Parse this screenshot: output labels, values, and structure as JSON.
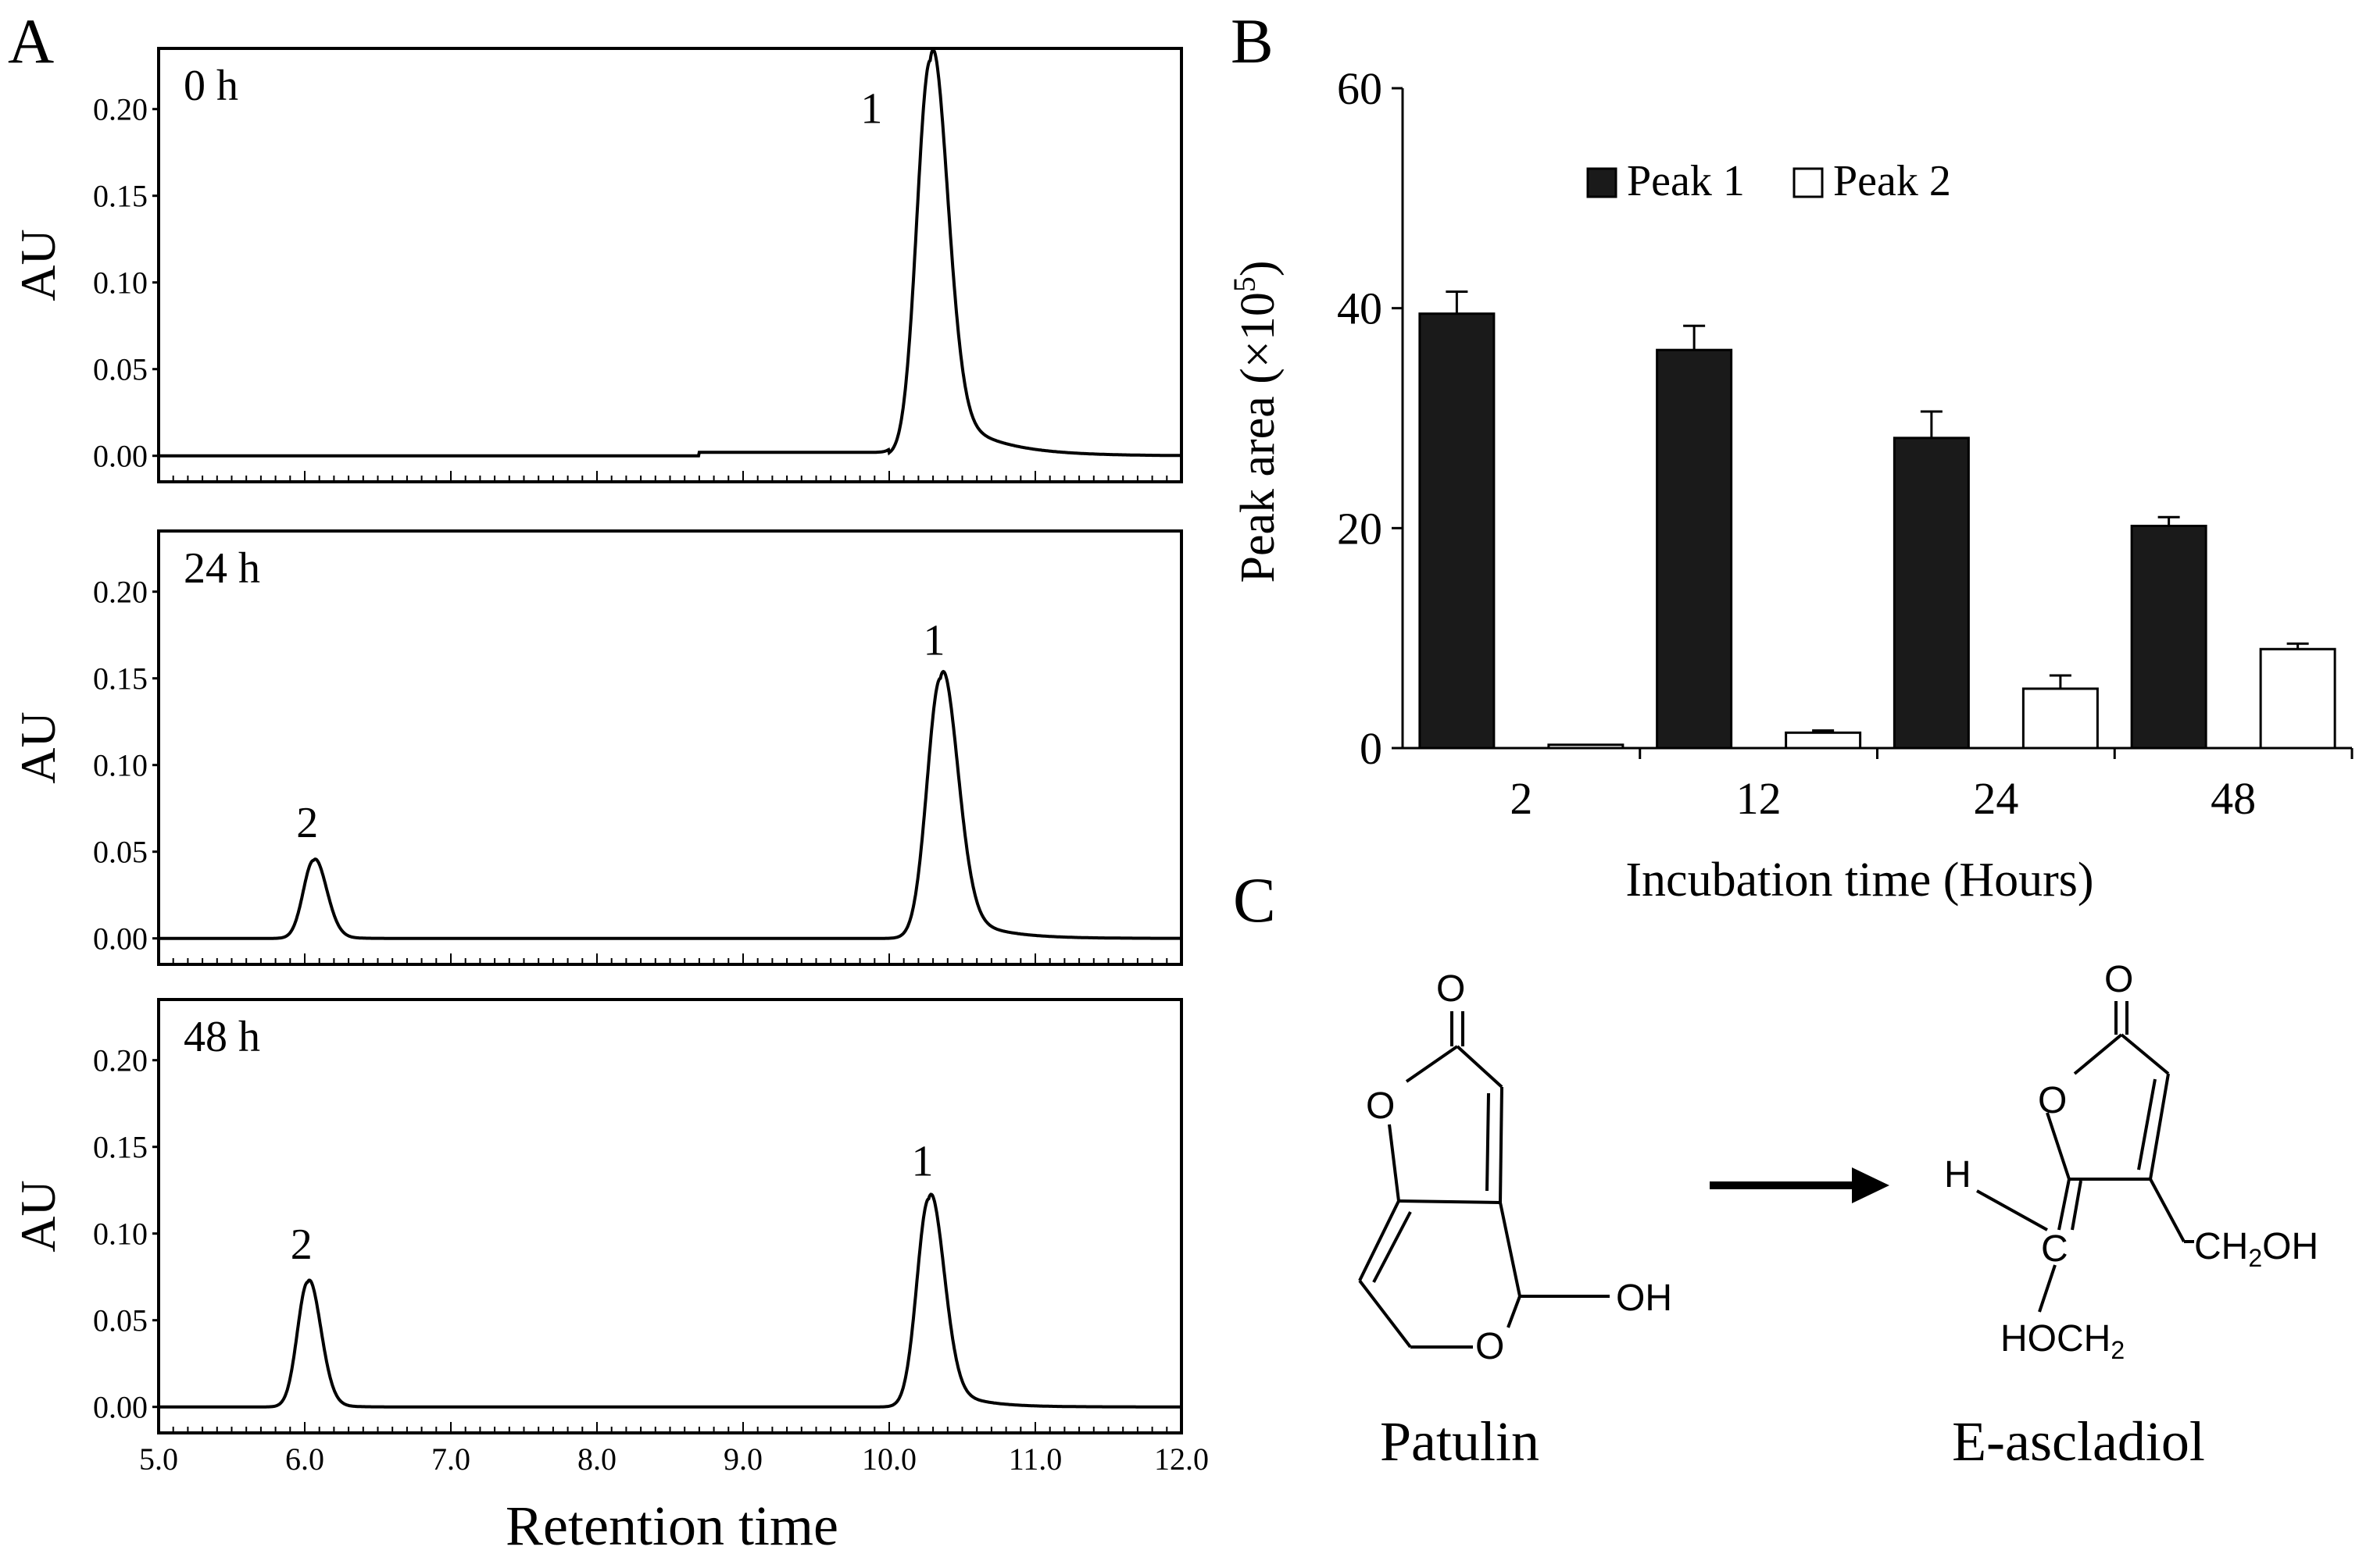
{
  "chart_data": [
    {
      "panel_label": "A",
      "type": "line",
      "xlabel": "Retention time",
      "ylabel": "AU",
      "xlim": [
        5.0,
        12.0
      ],
      "ylim": [
        -0.015,
        0.235
      ],
      "x_ticks": [
        "5.0",
        "6.0",
        "7.0",
        "8.0",
        "9.0",
        "10.0",
        "11.0",
        "12.0"
      ],
      "y_ticks": [
        "0.00",
        "0.05",
        "0.10",
        "0.15",
        "0.20"
      ],
      "subplots": [
        {
          "label": "0 h",
          "peaks": [
            {
              "name": "1",
              "rt": 10.28,
              "height": 0.228,
              "width": 0.09,
              "tail": 0.045
            }
          ],
          "baseline_bumps": [
            [
              8.7,
              0.002
            ],
            [
              11.0,
              0.001
            ]
          ]
        },
        {
          "label": "24 h",
          "peaks": [
            {
              "name": "2",
              "rt": 6.06,
              "height": 0.045,
              "width": 0.07,
              "tail": 0.012
            },
            {
              "name": "1",
              "rt": 10.35,
              "height": 0.15,
              "width": 0.09,
              "tail": 0.035
            }
          ],
          "baseline_bumps": []
        },
        {
          "label": "48 h",
          "peaks": [
            {
              "name": "2",
              "rt": 6.02,
              "height": 0.072,
              "width": 0.07,
              "tail": 0.012
            },
            {
              "name": "1",
              "rt": 10.27,
              "height": 0.12,
              "width": 0.08,
              "tail": 0.03
            }
          ],
          "baseline_bumps": []
        }
      ]
    },
    {
      "panel_label": "B",
      "type": "bar",
      "categories": [
        "2",
        "12",
        "24",
        "48"
      ],
      "series": [
        {
          "name": "Peak 1",
          "values": [
            39.5,
            36.2,
            28.2,
            20.2
          ],
          "errors": [
            2.0,
            2.2,
            2.4,
            0.8
          ],
          "color": "#1a1a1a"
        },
        {
          "name": "Peak 2",
          "values": [
            0.3,
            1.4,
            5.4,
            9.0
          ],
          "errors": [
            0.0,
            0.2,
            1.2,
            0.5
          ],
          "color": "#ffffff"
        }
      ],
      "xlabel": "Incubation time (Hours)",
      "ylabel_main": "Peak area (",
      "ylabel_mult": "×",
      "ylabel_base": "10",
      "ylabel_exp": "5",
      "ylabel_close": ")",
      "ylim": [
        0,
        60
      ],
      "y_ticks": [
        "0",
        "20",
        "40",
        "60"
      ],
      "legend": "top-center"
    }
  ],
  "panel_c": {
    "label": "C",
    "compound_1": "Patulin",
    "compound_2": "E-ascladiol",
    "atoms": {
      "o": "O",
      "oh": "OH",
      "h": "H",
      "c": "C",
      "ch2oh_a": "CH",
      "ch2oh_sub": "2",
      "ch2oh_b": "OH",
      "hoch2_a": "HOCH",
      "hoch2_sub": "2"
    }
  }
}
